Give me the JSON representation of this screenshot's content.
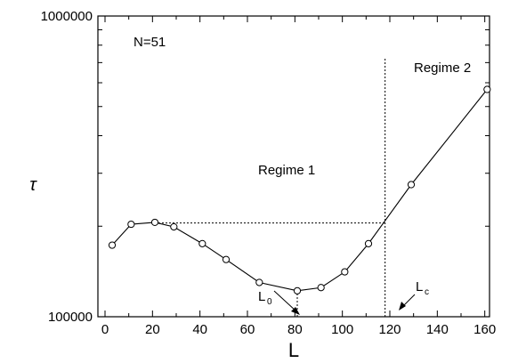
{
  "chart_data": {
    "type": "line",
    "xlabel": "L",
    "ylabel": "τ",
    "xscale": "linear",
    "yscale": "log",
    "xlim": [
      -3,
      162
    ],
    "ylim": [
      100000,
      1000000
    ],
    "xticks": [
      0,
      20,
      40,
      60,
      80,
      100,
      120,
      140,
      160
    ],
    "xtick_labels": [
      "0",
      "20",
      "40",
      "60",
      "80",
      "100",
      "120",
      "140",
      "160"
    ],
    "yticks": [
      100000,
      1000000
    ],
    "ytick_labels": [
      "100000",
      "1000000"
    ],
    "grid": false,
    "marker": "open-circle",
    "series": [
      {
        "x": [
          3,
          11,
          21,
          29,
          41,
          51,
          65,
          81,
          91,
          101,
          111,
          129,
          161
        ],
        "y": [
          173000,
          203000,
          206000,
          199000,
          175000,
          155000,
          130000,
          122000,
          125000,
          141000,
          175000,
          275000,
          570000
        ]
      }
    ],
    "reference_lines": {
      "horizontal": {
        "y": 205000,
        "x_from": 21,
        "x_to": 118
      },
      "vertical_lc": {
        "x": 118,
        "y_from": 100000,
        "y_to": 730000
      },
      "vertical_l0": {
        "x": 81,
        "y_from": 100000,
        "y_to": 122000
      }
    },
    "annotations": {
      "n_label": "N=51",
      "regime1": "Regime 1",
      "regime2": "Regime 2",
      "l0_main": "L",
      "l0_sub": "0",
      "lc_main": "L",
      "lc_sub": "c"
    }
  }
}
